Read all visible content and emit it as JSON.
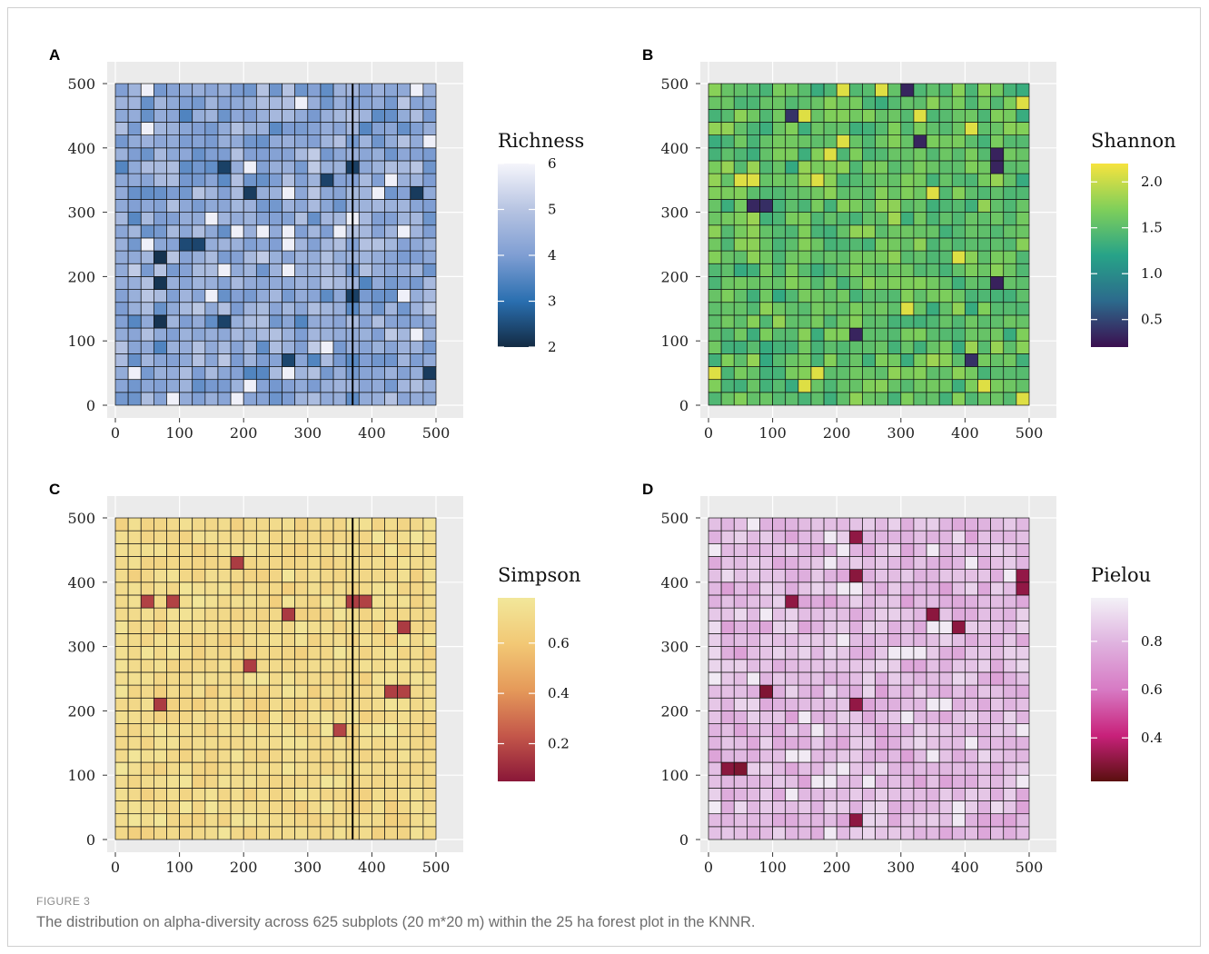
{
  "figure": {
    "label": "FIGURE 3",
    "caption": "The distribution on alpha-diversity across 625 subplots (20 m*20 m) within the 25 ha forest plot in the KNNR."
  },
  "chart_data": [
    {
      "type": "heatmap",
      "panel_label": "A",
      "legend_title": "Richness",
      "colorscale": [
        "#132b43",
        "#2a6fb0",
        "#7f9ed3",
        "#b7c4e2",
        "#f5f5fb"
      ],
      "value_range": [
        2,
        6
      ],
      "legend_ticks": [
        "6",
        "5",
        "4",
        "3",
        "2"
      ],
      "legend_tick_values": [
        6,
        5,
        4,
        3,
        2
      ],
      "x_ticks": [
        "0",
        "100",
        "200",
        "300",
        "400",
        "500"
      ],
      "y_ticks": [
        "500",
        "400",
        "300",
        "200",
        "100",
        "0"
      ],
      "xlim": [
        0,
        500
      ],
      "ylim": [
        0,
        500
      ],
      "grid_size": 25,
      "cell_size_m": 20,
      "seed": 11,
      "typical_value": 4.3,
      "spread": 0.9,
      "extreme_count": 14,
      "extreme_value": 2.1,
      "high_count": 30,
      "high_value": 5.9,
      "divider_x": 370
    },
    {
      "type": "heatmap",
      "panel_label": "B",
      "legend_title": "Shannon",
      "colorscale": [
        "#3b0f50",
        "#2c6a8c",
        "#27a388",
        "#7fcf5a",
        "#f6e33e"
      ],
      "value_range": [
        0.2,
        2.2
      ],
      "legend_ticks": [
        "2.0",
        "1.5",
        "1.0",
        "0.5"
      ],
      "legend_tick_values": [
        2.0,
        1.5,
        1.0,
        0.5
      ],
      "x_ticks": [
        "0",
        "100",
        "200",
        "300",
        "400",
        "500"
      ],
      "y_ticks": [
        "500",
        "400",
        "300",
        "200",
        "100",
        "0"
      ],
      "xlim": [
        0,
        500
      ],
      "ylim": [
        0,
        500
      ],
      "grid_size": 25,
      "cell_size_m": 20,
      "seed": 23,
      "typical_value": 1.55,
      "spread": 0.3,
      "extreme_count": 10,
      "extreme_value": 0.3,
      "high_count": 20,
      "high_value": 2.1,
      "divider_x": null
    },
    {
      "type": "heatmap",
      "panel_label": "C",
      "legend_title": "Simpson",
      "colorscale": [
        "#8a1738",
        "#c4574a",
        "#e59a5a",
        "#f2c875",
        "#f2e79a"
      ],
      "value_range": [
        0.05,
        0.78
      ],
      "legend_ticks": [
        "0.6",
        "0.4",
        "0.2"
      ],
      "legend_tick_values": [
        0.6,
        0.4,
        0.2
      ],
      "x_ticks": [
        "0",
        "100",
        "200",
        "300",
        "400",
        "500"
      ],
      "y_ticks": [
        "500",
        "400",
        "300",
        "200",
        "100",
        "0"
      ],
      "xlim": [
        0,
        500
      ],
      "ylim": [
        0,
        500
      ],
      "grid_size": 25,
      "cell_size_m": 20,
      "seed": 37,
      "typical_value": 0.7,
      "spread": 0.07,
      "extreme_count": 12,
      "extreme_value": 0.15,
      "high_count": 15,
      "high_value": 0.77,
      "divider_x": 370
    },
    {
      "type": "heatmap",
      "panel_label": "D",
      "legend_title": "Pielou",
      "colorscale": [
        "#5a0f0f",
        "#c8217a",
        "#d77ac4",
        "#dfb2df",
        "#f3f1f7"
      ],
      "value_range": [
        0.22,
        0.98
      ],
      "legend_ticks": [
        "0.8",
        "0.6",
        "0.4"
      ],
      "legend_tick_values": [
        0.8,
        0.6,
        0.4
      ],
      "x_ticks": [
        "0",
        "100",
        "200",
        "300",
        "400",
        "500"
      ],
      "y_ticks": [
        "500",
        "400",
        "300",
        "200",
        "100",
        "0"
      ],
      "xlim": [
        0,
        500
      ],
      "ylim": [
        0,
        500
      ],
      "grid_size": 25,
      "cell_size_m": 20,
      "seed": 51,
      "typical_value": 0.82,
      "spread": 0.1,
      "extreme_count": 12,
      "extreme_value": 0.28,
      "high_count": 40,
      "high_value": 0.96,
      "divider_x": null
    }
  ]
}
